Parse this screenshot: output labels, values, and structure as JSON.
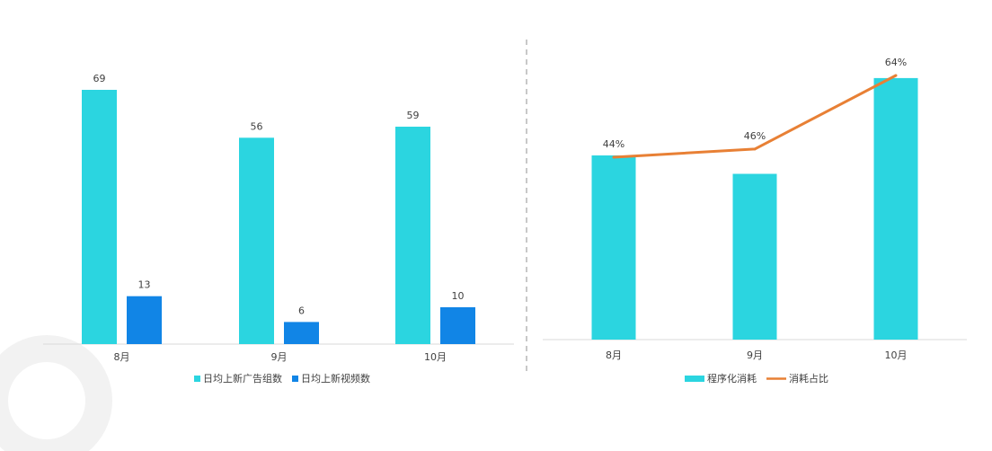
{
  "colors": {
    "cyan": "#2BD5E0",
    "blue": "#1185E6",
    "orange": "#E88035",
    "axis": "#D9D9D9",
    "divider": "#C8C8C8",
    "watermark": "#F2F2F2"
  },
  "chart_data": [
    {
      "type": "bar",
      "categories": [
        "8月",
        "9月",
        "10月"
      ],
      "series": [
        {
          "name": "日均上新广告组数",
          "values": [
            69,
            56,
            59
          ],
          "color": "#2BD5E0"
        },
        {
          "name": "日均上新视频数",
          "values": [
            13,
            6,
            10
          ],
          "color": "#1185E6"
        }
      ],
      "data_labels": true,
      "ylim": [
        0,
        70
      ],
      "legend": "bottom",
      "grid": false
    },
    {
      "type": "bar",
      "categories": [
        "8月",
        "9月",
        "10月"
      ],
      "series": [
        {
          "name": "程序化消耗",
          "kind": "bar",
          "values": [
            50,
            45,
            71
          ],
          "color": "#2BD5E0"
        },
        {
          "name": "消耗占比",
          "kind": "line",
          "values": [
            0.44,
            0.46,
            0.64
          ],
          "value_labels": [
            "44%",
            "46%",
            "64%"
          ],
          "color": "#E88035"
        }
      ],
      "ylim": [
        0,
        70
      ],
      "legend": "bottom",
      "grid": false
    }
  ]
}
